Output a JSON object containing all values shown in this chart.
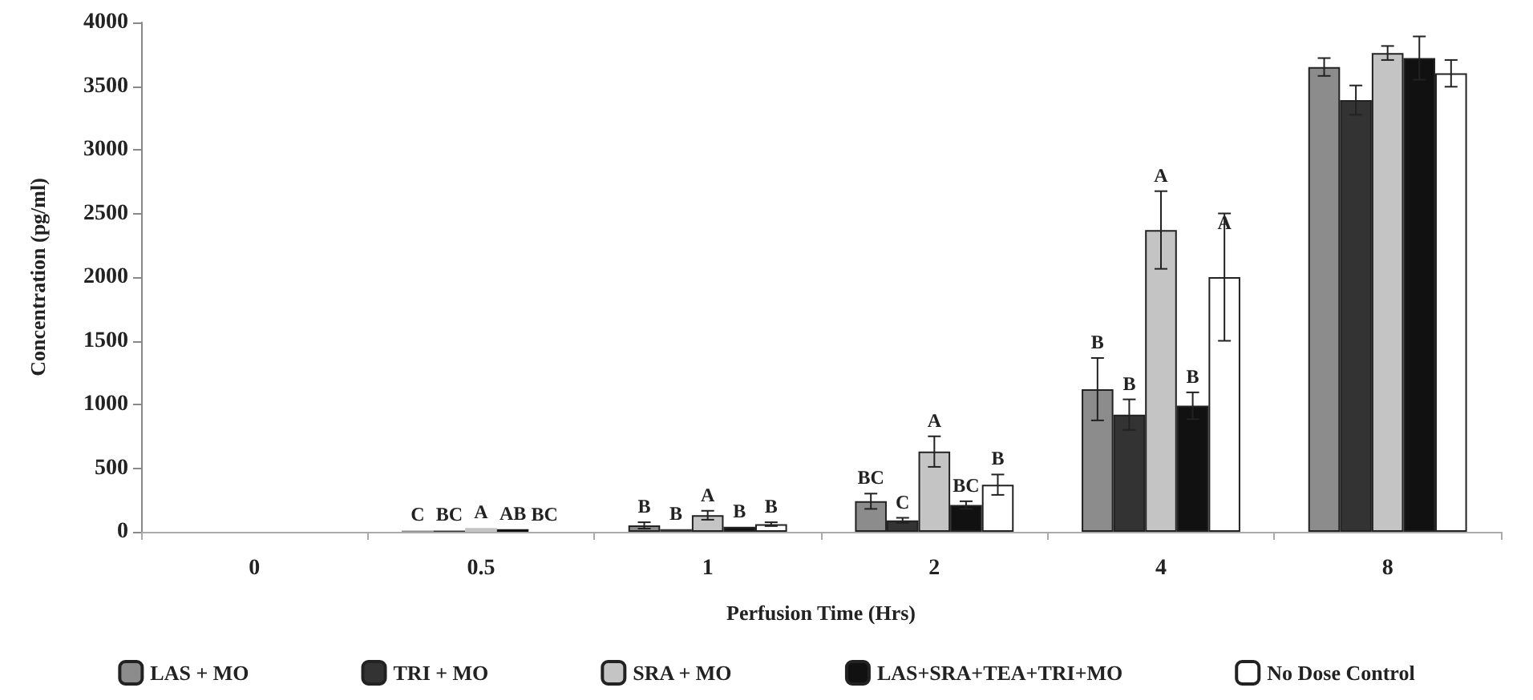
{
  "chart_data": {
    "type": "bar",
    "xlabel": "Perfusion Time (Hrs)",
    "ylabel": "Concentration (pg/ml)",
    "categories": [
      "0",
      "0.5",
      "1",
      "2",
      "4",
      "8"
    ],
    "ylim": [
      0,
      4000
    ],
    "yticks": [
      0,
      500,
      1000,
      1500,
      2000,
      2500,
      3000,
      3500,
      4000
    ],
    "grid": false,
    "legend": "bottom",
    "series": [
      {
        "name": "LAS + MO",
        "color": "#8c8c8c",
        "values": [
          0,
          10,
          50,
          240,
          1120,
          3650
        ],
        "errors": [
          null,
          null,
          25,
          60,
          245,
          70
        ],
        "value_labels": [
          null,
          "C",
          "B",
          "BC",
          "B",
          null
        ]
      },
      {
        "name": "TRI + MO",
        "color": "#333333",
        "values": [
          0,
          10,
          20,
          90,
          920,
          3390
        ],
        "errors": [
          null,
          null,
          null,
          20,
          120,
          115
        ],
        "value_labels": [
          null,
          "BC",
          "B",
          "C",
          "B",
          null
        ]
      },
      {
        "name": "SRA + MO",
        "color": "#c4c4c4",
        "values": [
          0,
          30,
          130,
          630,
          2370,
          3760
        ],
        "errors": [
          null,
          null,
          35,
          120,
          305,
          55
        ],
        "value_labels": [
          null,
          "A",
          "A",
          "A",
          "A",
          null
        ]
      },
      {
        "name": "LAS+SRA+TEA+TRI+MO",
        "color": "#111111",
        "values": [
          0,
          20,
          40,
          210,
          990,
          3720
        ],
        "errors": [
          null,
          null,
          null,
          30,
          105,
          170
        ],
        "value_labels": [
          null,
          "AB",
          "B",
          "BC",
          "B",
          null
        ]
      },
      {
        "name": "No Dose Control",
        "color": "#ffffff",
        "values": [
          0,
          10,
          60,
          370,
          2000,
          3600
        ],
        "errors": [
          null,
          null,
          15,
          80,
          500,
          105
        ],
        "value_labels": [
          null,
          "BC",
          "B",
          "B",
          "A",
          null
        ]
      }
    ]
  }
}
